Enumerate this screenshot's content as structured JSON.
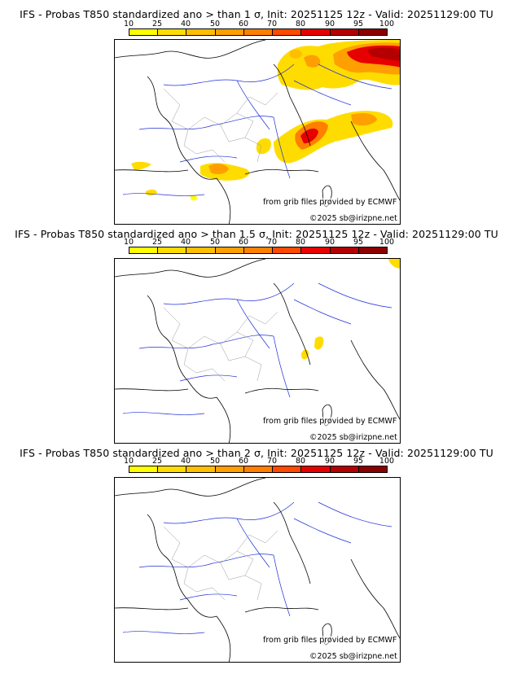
{
  "colorbar": {
    "ticks": [
      "10",
      "25",
      "40",
      "50",
      "60",
      "70",
      "80",
      "90",
      "95",
      "100"
    ],
    "colors": [
      "#ffff00",
      "#ffdc00",
      "#ffbe00",
      "#ff9f00",
      "#ff7f00",
      "#ff4a00",
      "#e60000",
      "#b40000",
      "#8c0000"
    ]
  },
  "panels": [
    {
      "title": "IFS - Probas T850  standardized ano > than 1 σ, Init: 20251125 12z - Valid: 20251129:00 TU",
      "source": "from grib files provided by ECMWF",
      "copyright": "©2025 sb@irizpne.net"
    },
    {
      "title": "IFS - Probas T850  standardized ano > than 1.5 σ, Init: 20251125 12z - Valid: 20251129:00 TU",
      "source": "from grib files provided by ECMWF",
      "copyright": "©2025 sb@irizpne.net"
    },
    {
      "title": "IFS - Probas T850  standardized ano > than 2 σ, Init: 20251125 12z - Valid: 20251129:00 TU",
      "source": "from grib files provided by ECMWF",
      "copyright": "©2025 sb@irizpne.net"
    }
  ]
}
